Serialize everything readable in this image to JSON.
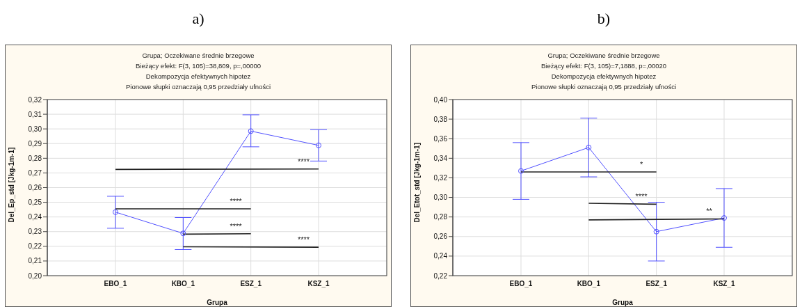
{
  "chart_data": [
    {
      "type": "line",
      "title": "Grupa; Oczekiwane średnie brzegowe",
      "subtitle": "Bieżący efekt: F(3, 105)=38,809, p=,00000\nDekompozycja efektywnych hipotez\nPionowe słupki oznaczają 0,95 przedziały ufności",
      "xlabel": "Grupa",
      "ylabel": "Del_Ep_std [Jkg-1m-1]",
      "categories": [
        "EBO_1",
        "KBO_1",
        "ESZ_1",
        "KSZ_1"
      ],
      "series": [
        {
          "color": "#5050ff",
          "marker": "circle",
          "values": [
            0.2433,
            0.2288,
            0.2985,
            0.2888
          ],
          "errors": [
            [
              0.2323,
              0.2541
            ],
            [
              0.2178,
              0.2396
            ],
            [
              0.2878,
              0.3096
            ],
            [
              0.2781,
              0.2995
            ]
          ]
        },
        {
          "type": "line",
          "color": "#222222",
          "marker": "none",
          "x": [
            "EBO_1",
            "KSZ_1"
          ],
          "values": [
            0.2724,
            0.2727
          ]
        },
        {
          "type": "line",
          "color": "#222222",
          "marker": "none",
          "x": [
            "EBO_1",
            "ESZ_1"
          ],
          "values": [
            0.2455,
            0.2455
          ]
        },
        {
          "type": "line",
          "color": "#222222",
          "marker": "none",
          "x": [
            "KBO_1",
            "ESZ_1"
          ],
          "values": [
            0.2283,
            0.2286
          ]
        },
        {
          "type": "line",
          "color": "#222222",
          "marker": "none",
          "x": [
            "KBO_1",
            "KSZ_1"
          ],
          "values": [
            0.2197,
            0.2194
          ]
        }
      ],
      "annotations": [
        "a)",
        {
          "text": "****",
          "x": "KSZ_1",
          "y": 0.2727
        },
        {
          "text": "****",
          "x": "ESZ_1",
          "y": 0.2455
        },
        {
          "text": "****",
          "x": "ESZ_1",
          "y": 0.2286
        },
        {
          "text": "****",
          "x": "KSZ_1",
          "y": 0.2194
        }
      ],
      "ylim": [
        0.2,
        0.32
      ],
      "yticks": [
        {
          "value": 0.2,
          "label": "0,20"
        },
        {
          "value": 0.21,
          "label": "0,21"
        },
        {
          "value": 0.22,
          "label": "0,22"
        },
        {
          "value": 0.23,
          "label": "0,23"
        },
        {
          "value": 0.24,
          "label": "0,24"
        },
        {
          "value": 0.25,
          "label": "0,25"
        },
        {
          "value": 0.26,
          "label": "0,26"
        },
        {
          "value": 0.27,
          "label": "0,27"
        },
        {
          "value": 0.28,
          "label": "0,28"
        },
        {
          "value": 0.29,
          "label": "0,29"
        },
        {
          "value": 0.3,
          "label": "0,30"
        },
        {
          "value": 0.31,
          "label": "0,31"
        },
        {
          "value": 0.32,
          "label": "0,32"
        }
      ],
      "grid": true,
      "legend": false,
      "line_style": "solid"
    },
    {
      "type": "line",
      "title": "Grupa; Oczekiwane średnie brzegowe",
      "subtitle": "Bieżący efekt: F(3, 105)=7,1888, p=,00020\nDekompozycja efektywnych hipotez\nPionowe słupki oznaczają 0,95 przedziały ufności",
      "xlabel": "Grupa",
      "ylabel": "Del_Etot_std [Jkg-1m-1]",
      "categories": [
        "EBO_1",
        "KBO_1",
        "ESZ_1",
        "KSZ_1"
      ],
      "series": [
        {
          "color": "#5050ff",
          "marker": "circle",
          "values": [
            0.327,
            0.351,
            0.265,
            0.279
          ],
          "errors": [
            [
              0.298,
              0.356
            ],
            [
              0.321,
              0.381
            ],
            [
              0.235,
              0.295
            ],
            [
              0.249,
              0.309
            ]
          ]
        },
        {
          "type": "line",
          "color": "#222222",
          "marker": "none",
          "x": [
            "EBO_1",
            "ESZ_1"
          ],
          "values": [
            0.326,
            0.326
          ]
        },
        {
          "type": "line",
          "color": "#222222",
          "marker": "none",
          "x": [
            "KBO_1",
            "ESZ_1"
          ],
          "values": [
            0.294,
            0.293
          ]
        },
        {
          "type": "line",
          "color": "#222222",
          "marker": "none",
          "x": [
            "KBO_1",
            "KSZ_1"
          ],
          "values": [
            0.277,
            0.278
          ]
        }
      ],
      "annotations": [
        "b)",
        {
          "text": "*",
          "x": "ESZ_1",
          "y": 0.326
        },
        {
          "text": "****",
          "x": "ESZ_1",
          "y": 0.293
        },
        {
          "text": "**",
          "x": "KSZ_1",
          "y": 0.278
        }
      ],
      "ylim": [
        0.22,
        0.4
      ],
      "yticks": [
        {
          "value": 0.22,
          "label": "0,22"
        },
        {
          "value": 0.24,
          "label": "0,24"
        },
        {
          "value": 0.26,
          "label": "0,26"
        },
        {
          "value": 0.28,
          "label": "0,28"
        },
        {
          "value": 0.3,
          "label": "0,30"
        },
        {
          "value": 0.32,
          "label": "0,32"
        },
        {
          "value": 0.34,
          "label": "0,34"
        },
        {
          "value": 0.36,
          "label": "0,36"
        },
        {
          "value": 0.38,
          "label": "0,38"
        },
        {
          "value": 0.4,
          "label": "0,40"
        }
      ],
      "grid": true,
      "legend": false,
      "line_style": "solid"
    }
  ]
}
